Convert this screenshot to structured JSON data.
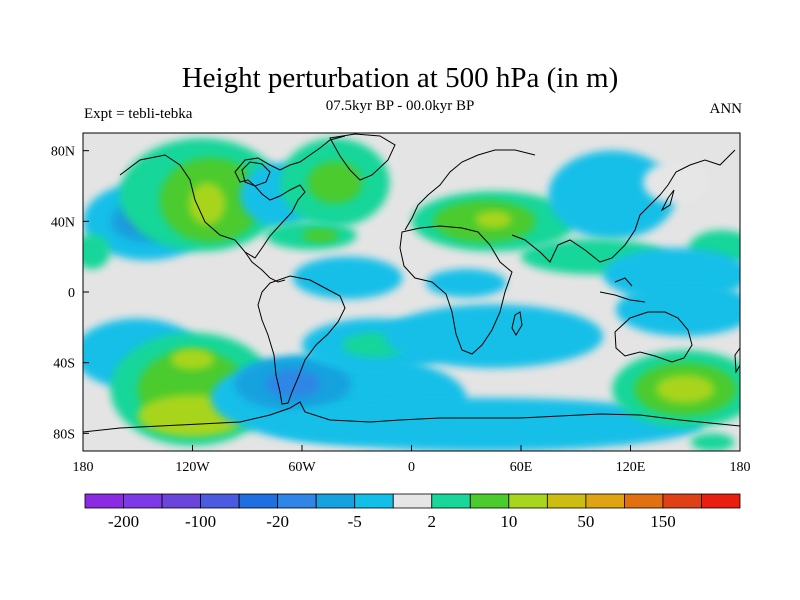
{
  "title": "Height perturbation at 500 hPa (in m)",
  "subtitle": "07.5kyr BP - 00.0kyr BP",
  "left_label": "Expt = tebli-tebka",
  "right_label": "ANN",
  "map": {
    "projection": "cylindrical-equidistant",
    "lon_range": [
      -180,
      180
    ],
    "lat_range": [
      -90,
      90
    ],
    "lon_ticks": [
      {
        "value": -180,
        "label": "180"
      },
      {
        "value": -120,
        "label": "120W"
      },
      {
        "value": -60,
        "label": "60W"
      },
      {
        "value": 0,
        "label": "0"
      },
      {
        "value": 60,
        "label": "60E"
      },
      {
        "value": 120,
        "label": "120E"
      },
      {
        "value": 180,
        "label": "180"
      }
    ],
    "lat_ticks": [
      {
        "value": 80,
        "label": "80N"
      },
      {
        "value": 40,
        "label": "40N"
      },
      {
        "value": 0,
        "label": "0"
      },
      {
        "value": -40,
        "label": "40S"
      },
      {
        "value": -80,
        "label": "80S"
      }
    ],
    "background_color": "#e4e4e4"
  },
  "colorbar": {
    "colors": [
      "#8a2be2",
      "#7c3ae6",
      "#6a45dc",
      "#4b5be0",
      "#1f6fe0",
      "#2f86e6",
      "#16a2df",
      "#12bfe8",
      "#e6e6e6",
      "#19d69a",
      "#4bcb2e",
      "#a8d51e",
      "#cdbd12",
      "#dea413",
      "#e07010",
      "#df4116",
      "#e81e10"
    ],
    "labels": [
      {
        "after_box": 1,
        "text": "-200"
      },
      {
        "after_box": 3,
        "text": "-100"
      },
      {
        "after_box": 5,
        "text": "-20"
      },
      {
        "after_box": 7,
        "text": "-5"
      },
      {
        "after_box": 9,
        "text": "2"
      },
      {
        "after_box": 11,
        "text": "10"
      },
      {
        "after_box": 13,
        "text": "50"
      },
      {
        "after_box": 15,
        "text": "150"
      }
    ]
  },
  "chart_data": {
    "type": "heatmap",
    "title": "Height perturbation at 500 hPa (in m)",
    "subtitle": "07.5kyr BP - 00.0kyr BP",
    "xlabel": "",
    "ylabel": "",
    "x_range": [
      -180,
      180
    ],
    "y_range": [
      -90,
      90
    ],
    "regions": [
      {
        "lon": -145,
        "lat": 40,
        "rlon": 35,
        "rlat": 22,
        "level": 7
      },
      {
        "lon": -145,
        "lat": 40,
        "rlon": 20,
        "rlat": 12,
        "level": 6
      },
      {
        "lon": -150,
        "lat": 40,
        "rlon": 8,
        "rlat": 5,
        "level": 5
      },
      {
        "lon": -175,
        "lat": 23,
        "rlon": 10,
        "rlat": 10,
        "level": 9
      },
      {
        "lon": -115,
        "lat": 55,
        "rlon": 45,
        "rlat": 32,
        "level": 9
      },
      {
        "lon": -110,
        "lat": 52,
        "rlon": 28,
        "rlat": 24,
        "level": 10
      },
      {
        "lon": -112,
        "lat": 50,
        "rlon": 10,
        "rlat": 12,
        "level": 11
      },
      {
        "lon": -72,
        "lat": 55,
        "rlon": 22,
        "rlat": 18,
        "level": 7
      },
      {
        "lon": -42,
        "lat": 62,
        "rlon": 30,
        "rlat": 25,
        "level": 9
      },
      {
        "lon": -42,
        "lat": 62,
        "rlon": 15,
        "rlat": 12,
        "level": 10
      },
      {
        "lon": -55,
        "lat": 32,
        "rlon": 25,
        "rlat": 8,
        "level": 9
      },
      {
        "lon": -50,
        "lat": 32,
        "rlon": 10,
        "rlat": 4,
        "level": 10
      },
      {
        "lon": -35,
        "lat": 8,
        "rlon": 30,
        "rlat": 12,
        "level": 7
      },
      {
        "lon": 45,
        "lat": 40,
        "rlon": 45,
        "rlat": 17,
        "level": 9
      },
      {
        "lon": 40,
        "lat": 40,
        "rlon": 28,
        "rlat": 12,
        "level": 10
      },
      {
        "lon": 45,
        "lat": 41,
        "rlon": 10,
        "rlat": 5,
        "level": 11
      },
      {
        "lon": 30,
        "lat": 5,
        "rlon": 22,
        "rlat": 8,
        "level": 7
      },
      {
        "lon": 110,
        "lat": 55,
        "rlon": 35,
        "rlat": 25,
        "level": 7
      },
      {
        "lon": 145,
        "lat": 62,
        "rlon": 18,
        "rlat": 12,
        "level": 8
      },
      {
        "lon": 100,
        "lat": 20,
        "rlon": 40,
        "rlat": 10,
        "level": 9
      },
      {
        "lon": 170,
        "lat": 25,
        "rlon": 18,
        "rlat": 10,
        "level": 9
      },
      {
        "lon": 145,
        "lat": 10,
        "rlon": 40,
        "rlat": 15,
        "level": 7
      },
      {
        "lon": 150,
        "lat": -10,
        "rlon": 38,
        "rlat": 15,
        "level": 7
      },
      {
        "lon": -150,
        "lat": -35,
        "rlon": 35,
        "rlat": 20,
        "level": 7
      },
      {
        "lon": -120,
        "lat": -55,
        "rlon": 45,
        "rlat": 32,
        "level": 9
      },
      {
        "lon": -120,
        "lat": -55,
        "rlon": 30,
        "rlat": 22,
        "level": 10
      },
      {
        "lon": -120,
        "lat": -70,
        "rlon": 30,
        "rlat": 12,
        "level": 11
      },
      {
        "lon": -120,
        "lat": -38,
        "rlon": 12,
        "rlat": 6,
        "level": 11
      },
      {
        "lon": -40,
        "lat": -60,
        "rlon": 70,
        "rlat": 25,
        "level": 7
      },
      {
        "lon": -65,
        "lat": -52,
        "rlon": 32,
        "rlat": 15,
        "level": 6
      },
      {
        "lon": -65,
        "lat": -52,
        "rlon": 15,
        "rlat": 8,
        "level": 5
      },
      {
        "lon": -20,
        "lat": -30,
        "rlon": 40,
        "rlat": 15,
        "level": 7
      },
      {
        "lon": -20,
        "lat": -30,
        "rlon": 18,
        "rlat": 7,
        "level": 9
      },
      {
        "lon": 45,
        "lat": -25,
        "rlon": 60,
        "rlat": 18,
        "level": 7
      },
      {
        "lon": 40,
        "lat": -75,
        "rlon": 120,
        "rlat": 15,
        "level": 7
      },
      {
        "lon": 150,
        "lat": -55,
        "rlon": 40,
        "rlat": 22,
        "level": 9
      },
      {
        "lon": 150,
        "lat": -55,
        "rlon": 28,
        "rlat": 15,
        "level": 10
      },
      {
        "lon": 150,
        "lat": -55,
        "rlon": 16,
        "rlat": 8,
        "level": 11
      },
      {
        "lon": 165,
        "lat": -85,
        "rlon": 12,
        "rlat": 5,
        "level": 9
      }
    ]
  }
}
